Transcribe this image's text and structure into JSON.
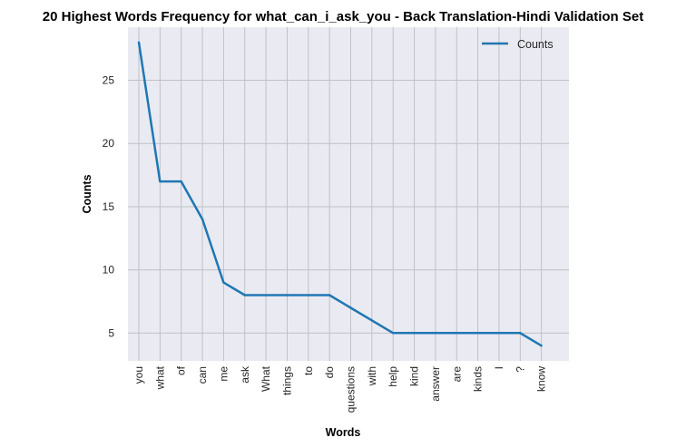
{
  "chart_data": {
    "type": "line",
    "title": "20 Highest Words Frequency for what_can_i_ask_you - Back Translation-Hindi Validation Set",
    "xlabel": "Words",
    "ylabel": "Counts",
    "categories": [
      "you",
      "what",
      "of",
      "can",
      "me",
      "ask",
      "What",
      "things",
      "to",
      "do",
      "questions",
      "with",
      "help",
      "kind",
      "answer",
      "are",
      "kinds",
      "I",
      "?",
      "know"
    ],
    "series": [
      {
        "name": "Counts",
        "values": [
          28,
          17,
          17,
          14,
          9,
          8,
          8,
          8,
          8,
          8,
          7,
          6,
          5,
          5,
          5,
          5,
          5,
          5,
          5,
          4
        ],
        "color": "#1f77b4"
      }
    ],
    "ylim": [
      2.8,
      29.2
    ],
    "yticks": [
      5,
      10,
      15,
      20,
      25
    ],
    "grid": true,
    "legend_position": "top-right"
  }
}
